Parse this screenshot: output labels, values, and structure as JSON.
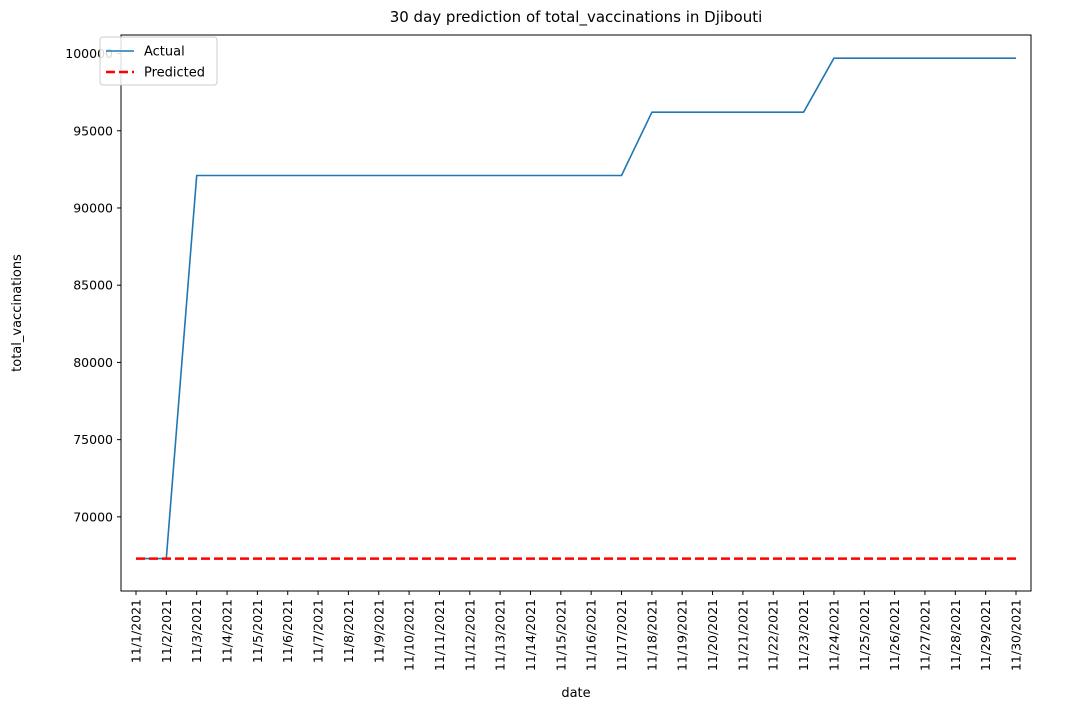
{
  "chart_data": {
    "type": "line",
    "title": "30 day prediction of total_vaccinations in Djibouti",
    "xlabel": "date",
    "ylabel": "total_vaccinations",
    "x": [
      "11/1/2021",
      "11/2/2021",
      "11/3/2021",
      "11/4/2021",
      "11/5/2021",
      "11/6/2021",
      "11/7/2021",
      "11/8/2021",
      "11/9/2021",
      "11/10/2021",
      "11/11/2021",
      "11/12/2021",
      "11/13/2021",
      "11/14/2021",
      "11/15/2021",
      "11/16/2021",
      "11/17/2021",
      "11/18/2021",
      "11/19/2021",
      "11/20/2021",
      "11/21/2021",
      "11/22/2021",
      "11/23/2021",
      "11/24/2021",
      "11/25/2021",
      "11/26/2021",
      "11/27/2021",
      "11/28/2021",
      "11/29/2021",
      "11/30/2021"
    ],
    "yticks": [
      70000,
      75000,
      80000,
      85000,
      90000,
      95000,
      100000
    ],
    "ylim": [
      65200,
      101200
    ],
    "grid": false,
    "legend_position": "top-left",
    "series": [
      {
        "name": "Actual",
        "color": "#1f77b4",
        "style": "solid",
        "values": [
          67300,
          67300,
          92100,
          92100,
          92100,
          92100,
          92100,
          92100,
          92100,
          92100,
          92100,
          92100,
          92100,
          92100,
          92100,
          92100,
          92100,
          96200,
          96200,
          96200,
          96200,
          96200,
          96200,
          99700,
          99700,
          99700,
          99700,
          99700,
          99700,
          99700
        ]
      },
      {
        "name": "Predicted",
        "color": "#ff0000",
        "style": "dashed",
        "values": [
          67300,
          67300,
          67300,
          67300,
          67300,
          67300,
          67300,
          67300,
          67300,
          67300,
          67300,
          67300,
          67300,
          67300,
          67300,
          67300,
          67300,
          67300,
          67300,
          67300,
          67300,
          67300,
          67300,
          67300,
          67300,
          67300,
          67300,
          67300,
          67300,
          67300
        ]
      }
    ]
  }
}
